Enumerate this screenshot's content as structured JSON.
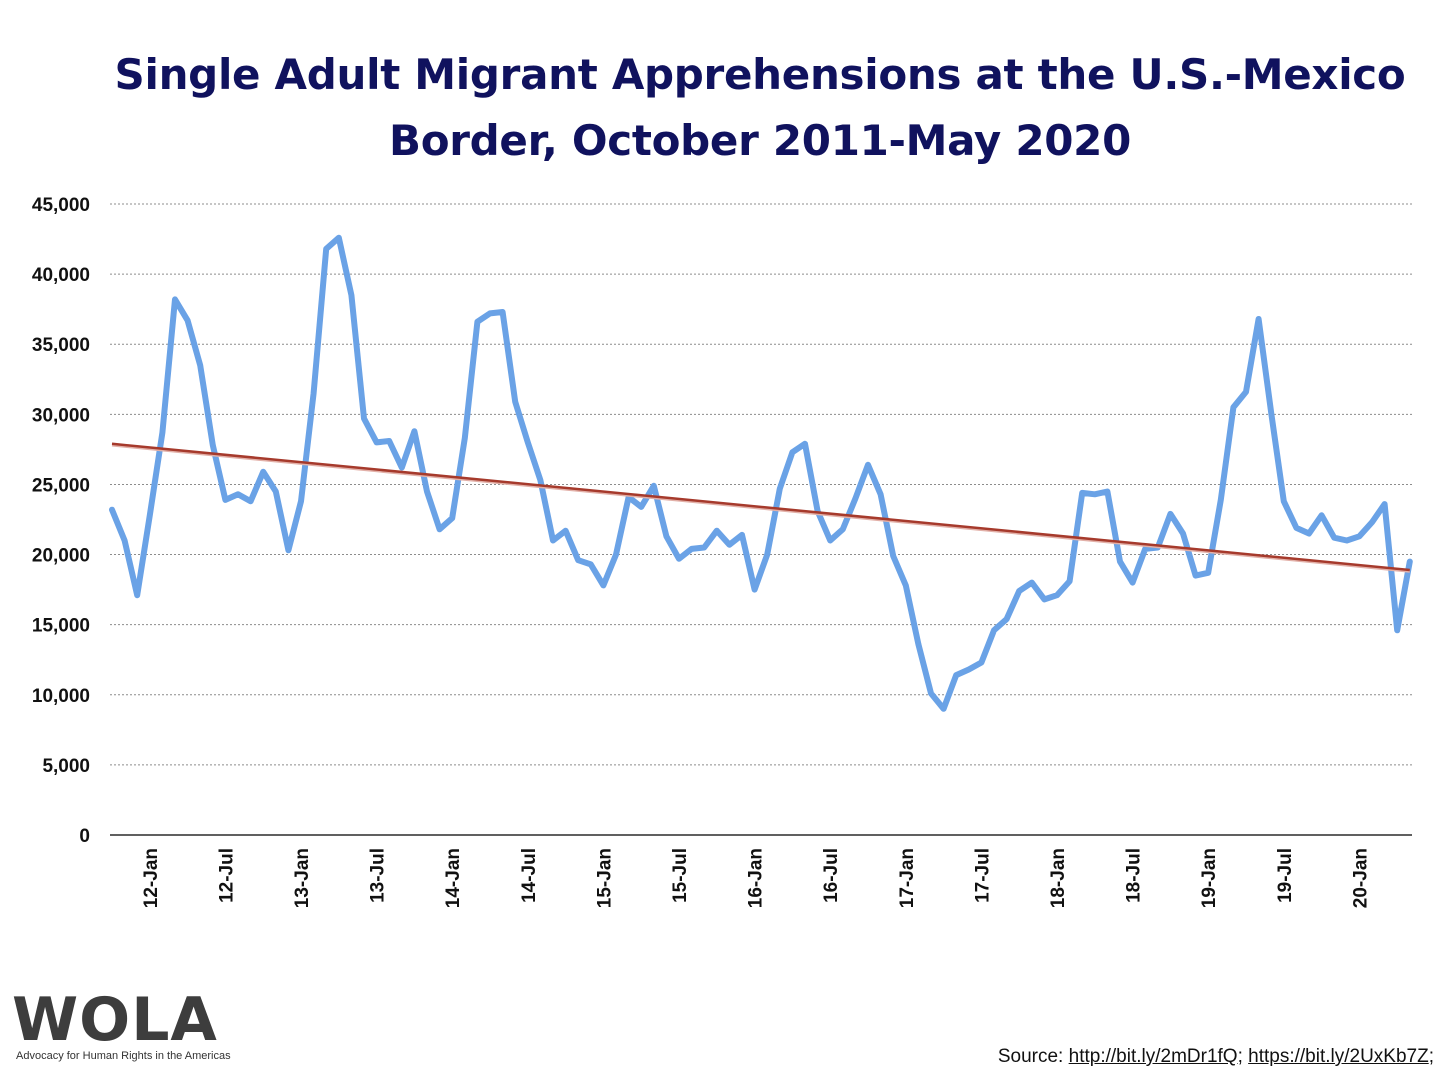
{
  "chart_data": {
    "type": "line",
    "title": "Single Adult Migrant Apprehensions at the U.S.-Mexico Border, October 2011-May 2020",
    "ylim": [
      0,
      45000
    ],
    "yticks": [
      "0",
      "5,000",
      "10,000",
      "15,000",
      "20,000",
      "25,000",
      "30,000",
      "35,000",
      "40,000",
      "45,000"
    ],
    "ytick_values": [
      0,
      5000,
      10000,
      15000,
      20000,
      25000,
      30000,
      35000,
      40000,
      45000
    ],
    "xticks": [
      "12-Jan",
      "12-Jul",
      "13-Jan",
      "13-Jul",
      "14-Jan",
      "14-Jul",
      "15-Jan",
      "15-Jul",
      "16-Jan",
      "16-Jul",
      "17-Jan",
      "17-Jul",
      "18-Jan",
      "18-Jul",
      "19-Jan",
      "19-Jul",
      "20-Jan"
    ],
    "x_start": "2011-10",
    "x_end": "2020-05",
    "grid": true,
    "series": [
      {
        "color": "#6aa2e6",
        "values": [
          23200,
          21000,
          17100,
          22800,
          28700,
          38200,
          36700,
          33500,
          27800,
          23900,
          24300,
          23800,
          25900,
          24500,
          20300,
          23800,
          31500,
          41800,
          42600,
          38500,
          29700,
          28000,
          28100,
          26200,
          28800,
          24500,
          21800,
          22600,
          28300,
          36600,
          37200,
          37300,
          30900,
          28000,
          25300,
          21000,
          21700,
          19600,
          19300,
          17800,
          20000,
          24100,
          23400,
          24900,
          21300,
          19700,
          20400,
          20500,
          21700,
          20700,
          21400,
          17500,
          20000,
          24700,
          27300,
          27900,
          23100,
          21000,
          21800,
          24000,
          26400,
          24300,
          19900,
          17800,
          13600,
          10100,
          9000,
          11400,
          11800,
          12300,
          14600,
          15400,
          17400,
          18000,
          16800,
          17100,
          18100,
          24400,
          24300,
          24500,
          19500,
          18000,
          20400,
          20500,
          22900,
          21500,
          18500,
          18700,
          23900,
          30500,
          31600,
          36800,
          30100,
          23800,
          21900,
          21500,
          22800,
          21200,
          21000,
          21300,
          22300,
          23600,
          14600,
          19500
        ]
      },
      {
        "type": "trendline",
        "color": "#a63a2c",
        "values": [
          27900,
          18900
        ]
      }
    ],
    "source_prefix": "Source: ",
    "source_link_1": "http://bit.ly/2mDr1fQ",
    "source_sep": "; ",
    "source_link_2": "https://bit.ly/2UxKb7Z",
    "source_suffix": ";"
  },
  "logo": {
    "wordmark": "WOLA",
    "tagline": "Advocacy for Human Rights in the Americas"
  }
}
